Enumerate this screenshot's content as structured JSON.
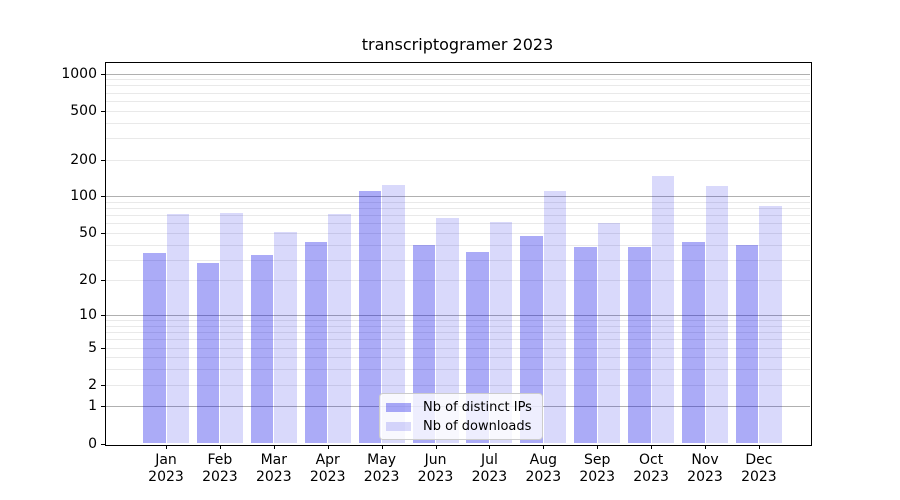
{
  "chart_title": "transcriptogramer 2023",
  "chart_data": {
    "type": "bar",
    "title": "transcriptogramer 2023",
    "categories": [
      "Jan 2023",
      "Feb 2023",
      "Mar 2023",
      "Apr 2023",
      "May 2023",
      "Jun 2023",
      "Jul 2023",
      "Aug 2023",
      "Sep 2023",
      "Oct 2023",
      "Nov 2023",
      "Dec 2023"
    ],
    "series": [
      {
        "name": "Nb of distinct IPs",
        "values": [
          34,
          28,
          33,
          42,
          110,
          40,
          35,
          47,
          38,
          38,
          42,
          40
        ]
      },
      {
        "name": "Nb of downloads",
        "values": [
          72,
          73,
          51,
          72,
          125,
          66,
          61,
          110,
          60,
          148,
          122,
          84
        ]
      }
    ],
    "xlabel": "",
    "ylabel": "",
    "y_ticks": [
      0,
      1,
      2,
      5,
      10,
      20,
      50,
      100,
      200,
      500,
      1000
    ],
    "y_scale": "symlog, position = log10(1 + value)",
    "ylim": [
      0,
      1240
    ],
    "grid": {
      "major_gridlines_at": [
        1,
        10,
        100,
        1000
      ],
      "minor_gridlines": "mantissas 2-9 of each decade",
      "grid_on": true
    },
    "legend_position": "lower center"
  },
  "x_axis": {
    "months": [
      "Jan",
      "Feb",
      "Mar",
      "Apr",
      "May",
      "Jun",
      "Jul",
      "Aug",
      "Sep",
      "Oct",
      "Nov",
      "Dec"
    ],
    "year": "2023"
  },
  "y_axis": {
    "tick_labels": [
      "1000",
      "500",
      "200",
      "100",
      "50",
      "20",
      "10",
      "5",
      "2",
      "1",
      "0"
    ]
  },
  "legend": {
    "items": [
      {
        "label": "Nb of distinct IPs",
        "color": "rgba(0,0,230,0.33)"
      },
      {
        "label": "Nb of downloads",
        "color": "rgba(0,0,230,0.15)"
      }
    ]
  },
  "colors": {
    "bar_distinct_ips": "rgba(0,0,230,0.33)",
    "bar_downloads": "rgba(0,0,230,0.15)",
    "grid_major": "#b0b0b0",
    "grid_minor": "#e9e9e9",
    "spine": "#000000",
    "background": "#ffffff"
  }
}
